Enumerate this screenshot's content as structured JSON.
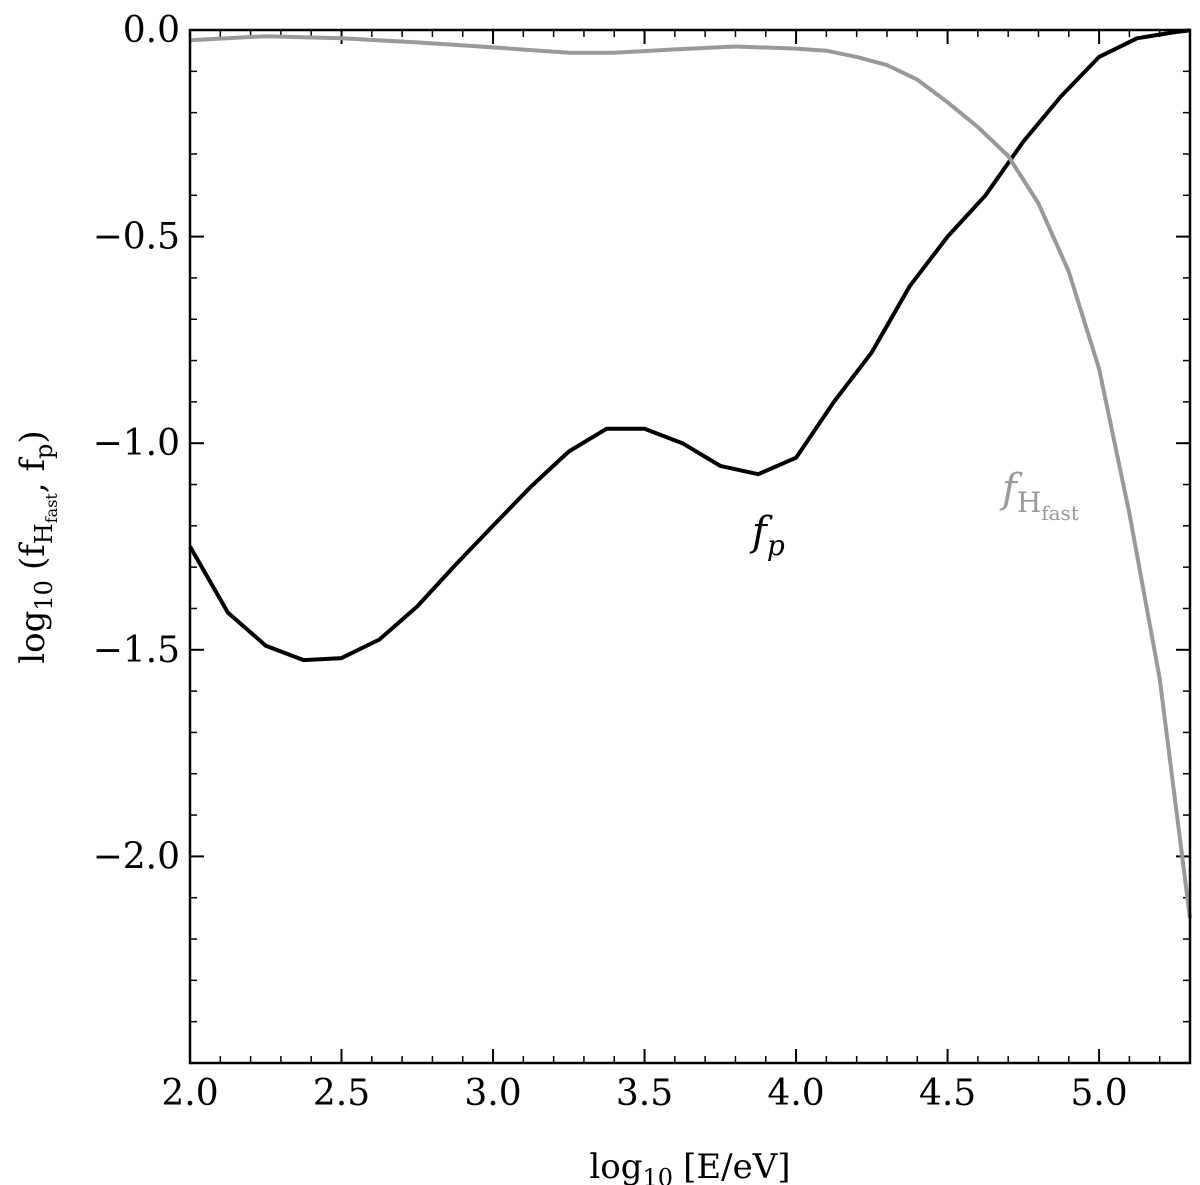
{
  "chart_data": {
    "type": "line",
    "title": "",
    "xlabel": {
      "prefix": "log",
      "sub": "10",
      "body": "[E/eV]"
    },
    "ylabel": {
      "prefix": "log",
      "sub": "10",
      "body_parts": [
        "(f",
        "H",
        "fast",
        ", f",
        "p",
        ")"
      ]
    },
    "xlim": [
      2.0,
      5.3
    ],
    "ylim": [
      -2.5,
      0.0
    ],
    "x_ticks": [
      2.0,
      2.5,
      3.0,
      3.5,
      4.0,
      4.5,
      5.0
    ],
    "x_tick_labels": [
      "2.0",
      "2.5",
      "3.0",
      "3.5",
      "4.0",
      "4.5",
      "5.0"
    ],
    "y_ticks": [
      0.0,
      -0.5,
      -1.0,
      -1.5,
      -2.0
    ],
    "y_tick_labels": [
      "0.0",
      "−0.5",
      "−1.0",
      "−1.5",
      "−2.0"
    ],
    "grid": false,
    "legend": "none",
    "series": [
      {
        "name": "f_p",
        "label_main": "f",
        "label_sub": "p",
        "color": "#000000",
        "x": [
          2.0,
          2.125,
          2.25,
          2.375,
          2.5,
          2.625,
          2.75,
          2.875,
          3.0,
          3.125,
          3.25,
          3.375,
          3.5,
          3.625,
          3.75,
          3.875,
          4.0,
          4.125,
          4.25,
          4.375,
          4.5,
          4.625,
          4.75,
          4.875,
          5.0,
          5.125,
          5.25,
          5.3
        ],
        "y": [
          -1.25,
          -1.41,
          -1.49,
          -1.525,
          -1.52,
          -1.475,
          -1.395,
          -1.295,
          -1.2,
          -1.105,
          -1.02,
          -0.965,
          -0.965,
          -1.0,
          -1.055,
          -1.075,
          -1.035,
          -0.9,
          -0.78,
          -0.62,
          -0.5,
          -0.4,
          -0.27,
          -0.16,
          -0.065,
          -0.02,
          -0.005,
          -0.001
        ]
      },
      {
        "name": "f_H_fast",
        "label_main": "f",
        "label_sub": "H",
        "label_subsub": "fast",
        "color": "#999999",
        "x": [
          2.0,
          2.25,
          2.5,
          2.75,
          3.0,
          3.25,
          3.4,
          3.6,
          3.8,
          4.0,
          4.1,
          4.2,
          4.3,
          4.4,
          4.5,
          4.6,
          4.7,
          4.8,
          4.9,
          5.0,
          5.1,
          5.2,
          5.3
        ],
        "y": [
          -0.025,
          -0.015,
          -0.02,
          -0.03,
          -0.042,
          -0.055,
          -0.055,
          -0.047,
          -0.04,
          -0.045,
          -0.05,
          -0.065,
          -0.085,
          -0.12,
          -0.175,
          -0.235,
          -0.305,
          -0.42,
          -0.585,
          -0.82,
          -1.17,
          -1.57,
          -2.15
        ]
      }
    ]
  }
}
